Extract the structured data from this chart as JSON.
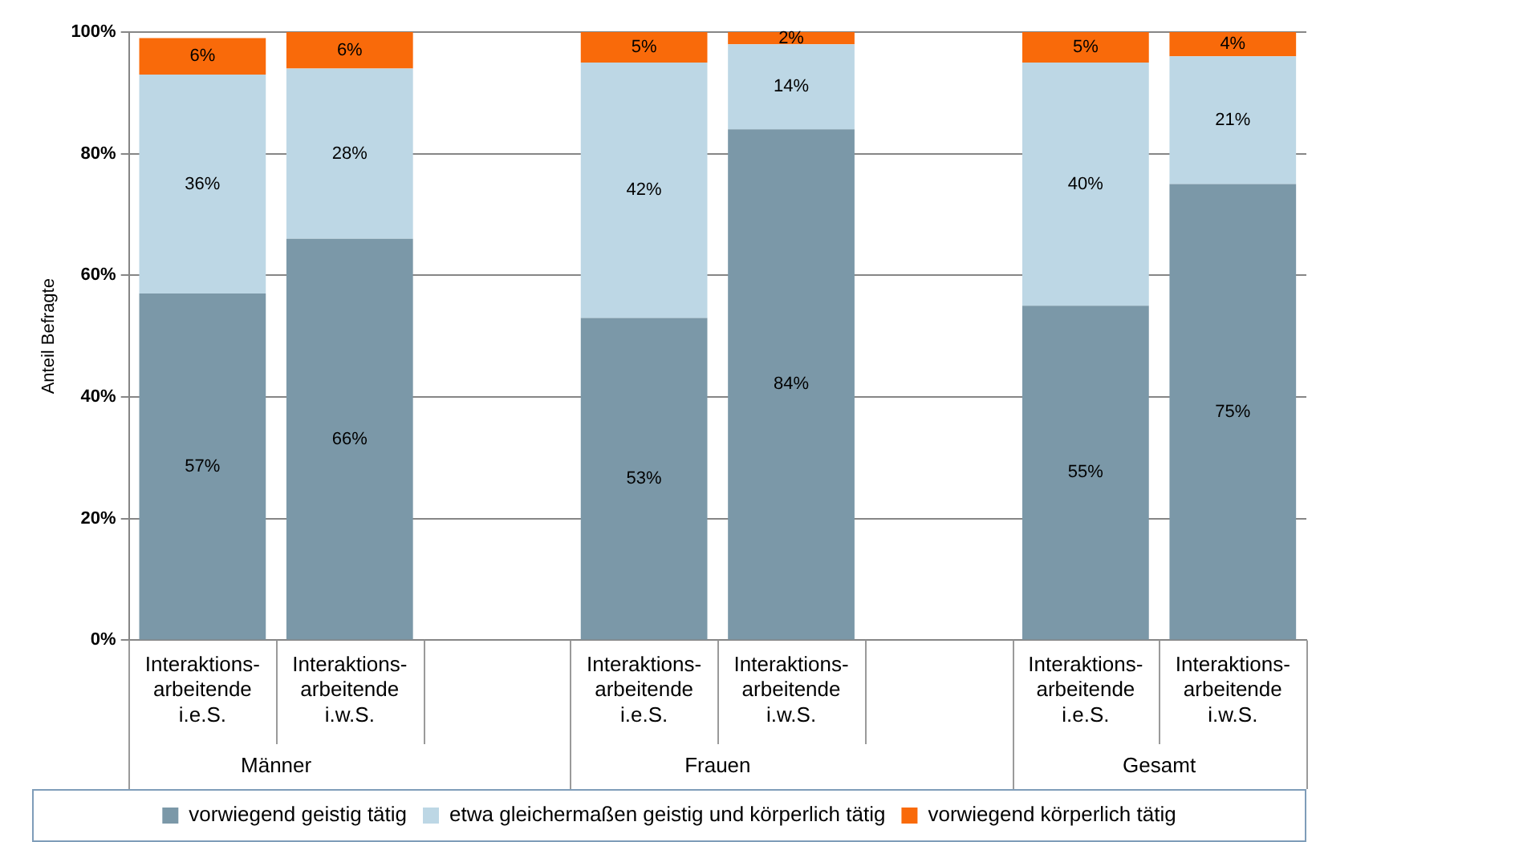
{
  "chart_data": {
    "type": "bar",
    "stacked": true,
    "ylabel": "Anteil Befragte",
    "categories": [
      "Interaktions-arbeitende i.e.S.",
      "Interaktions-arbeitende i.w.S.",
      null,
      "Interaktions-arbeitende i.e.S.",
      "Interaktions-arbeitende i.w.S.",
      null,
      "Interaktions-arbeitende i.e.S.",
      "Interaktions-arbeitende i.w.S."
    ],
    "annotations": [
      "Männer",
      "Frauen",
      "Gesamt"
    ],
    "ylim": [
      0,
      100
    ],
    "yticks": [
      {
        "value": 0,
        "label": "0%"
      },
      {
        "value": 20,
        "label": "20%"
      },
      {
        "value": 40,
        "label": "40%"
      },
      {
        "value": 60,
        "label": "60%"
      },
      {
        "value": 80,
        "label": "80%"
      },
      {
        "value": 100,
        "label": "100%"
      }
    ],
    "grid": "y",
    "legend": "bottom",
    "series": [
      {
        "name": "vorwiegend geistig tätig",
        "color": "#7b98a8",
        "values": [
          57,
          66,
          null,
          53,
          84,
          null,
          55,
          75
        ],
        "value_labels": [
          "57%",
          "66%",
          null,
          "53%",
          "84%",
          null,
          "55%",
          "75%"
        ]
      },
      {
        "name": "etwa gleichermaßen geistig und körperlich tätig",
        "color": "#bdd7e5",
        "values": [
          36,
          28,
          null,
          42,
          14,
          null,
          40,
          21
        ],
        "value_labels": [
          "36%",
          "28%",
          null,
          "42%",
          "14%",
          null,
          "40%",
          "21%"
        ]
      },
      {
        "name": "vorwiegend körperlich tätig",
        "color": "#f96a0a",
        "values": [
          6,
          6,
          null,
          5,
          2,
          null,
          5,
          4
        ],
        "value_labels": [
          "6%",
          "6%",
          null,
          "5%",
          "2%",
          null,
          "5%",
          "4%"
        ]
      }
    ]
  }
}
